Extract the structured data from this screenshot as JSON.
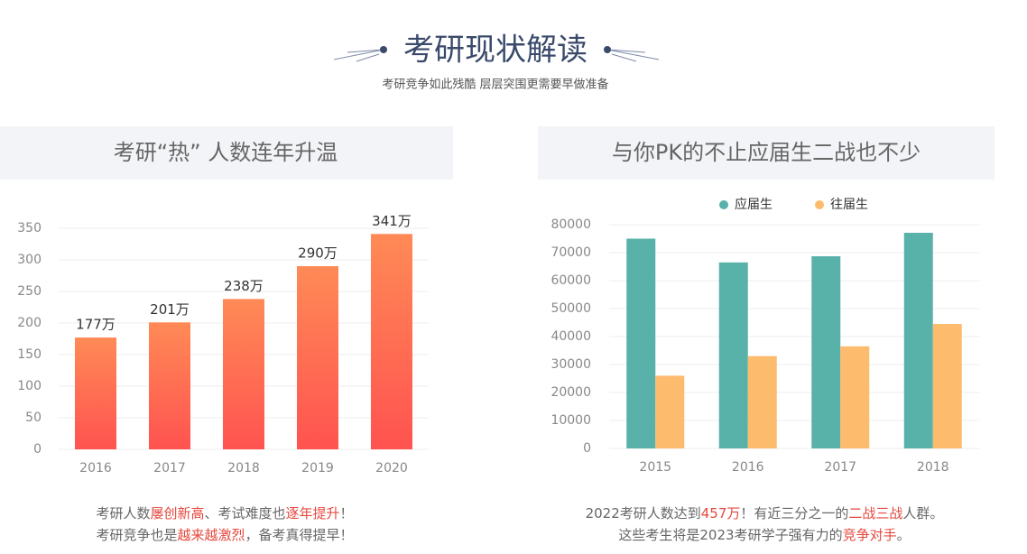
{
  "header": {
    "title": "考研现状解读",
    "subtitle": "考研竞争如此残酷 层层突围更需要早做准备"
  },
  "chart_data": [
    {
      "type": "bar",
      "title": "考研“热” 人数连年升温",
      "categories": [
        "2016",
        "2017",
        "2018",
        "2019",
        "2020"
      ],
      "values": [
        177,
        201,
        238,
        290,
        341
      ],
      "value_labels": [
        "177万",
        "201万",
        "238万",
        "290万",
        "341万"
      ],
      "gradient": [
        "#ff8a56",
        "#ff5350"
      ],
      "ylim": [
        0,
        350
      ],
      "yticks": [
        0,
        50,
        100,
        150,
        200,
        250,
        300,
        350
      ],
      "grid": true
    },
    {
      "type": "bar",
      "title": "与你PK的不止应届生二战也不少",
      "categories": [
        "2015",
        "2016",
        "2017",
        "2018"
      ],
      "series": [
        {
          "name": "应届生",
          "color": "#58b2a9",
          "values": [
            75000,
            66500,
            68700,
            77100
          ]
        },
        {
          "name": "往届生",
          "color": "#fdbb6e",
          "values": [
            26000,
            33000,
            36500,
            44500
          ]
        }
      ],
      "ylim": [
        0,
        80000
      ],
      "yticks": [
        0,
        10000,
        20000,
        30000,
        40000,
        50000,
        60000,
        70000,
        80000
      ],
      "grid": true,
      "legend": "top"
    }
  ],
  "captions": [
    [
      [
        {
          "text": "考研人数",
          "color": "#666666"
        },
        {
          "text": "屡创新高",
          "color": "#e5493f"
        },
        {
          "text": "、考试难度也",
          "color": "#666666"
        },
        {
          "text": "逐年提升",
          "color": "#e5493f"
        },
        {
          "text": "！",
          "color": "#666666"
        }
      ],
      [
        {
          "text": "考研竞争也是",
          "color": "#666666"
        },
        {
          "text": "越来越激烈",
          "color": "#e5493f"
        },
        {
          "text": "，备考真得提早！",
          "color": "#666666"
        }
      ]
    ],
    [
      [
        {
          "text": "2022考研人数达到",
          "color": "#666666"
        },
        {
          "text": "457万",
          "color": "#e5493f"
        },
        {
          "text": "！有近三分之一的",
          "color": "#666666"
        },
        {
          "text": "二战三战",
          "color": "#e5493f"
        },
        {
          "text": "人群。",
          "color": "#666666"
        }
      ],
      [
        {
          "text": "这些考生将是2023考研学子强有力的",
          "color": "#666666"
        },
        {
          "text": "竞争对手",
          "color": "#e5493f"
        },
        {
          "text": "。",
          "color": "#666666"
        }
      ]
    ]
  ]
}
